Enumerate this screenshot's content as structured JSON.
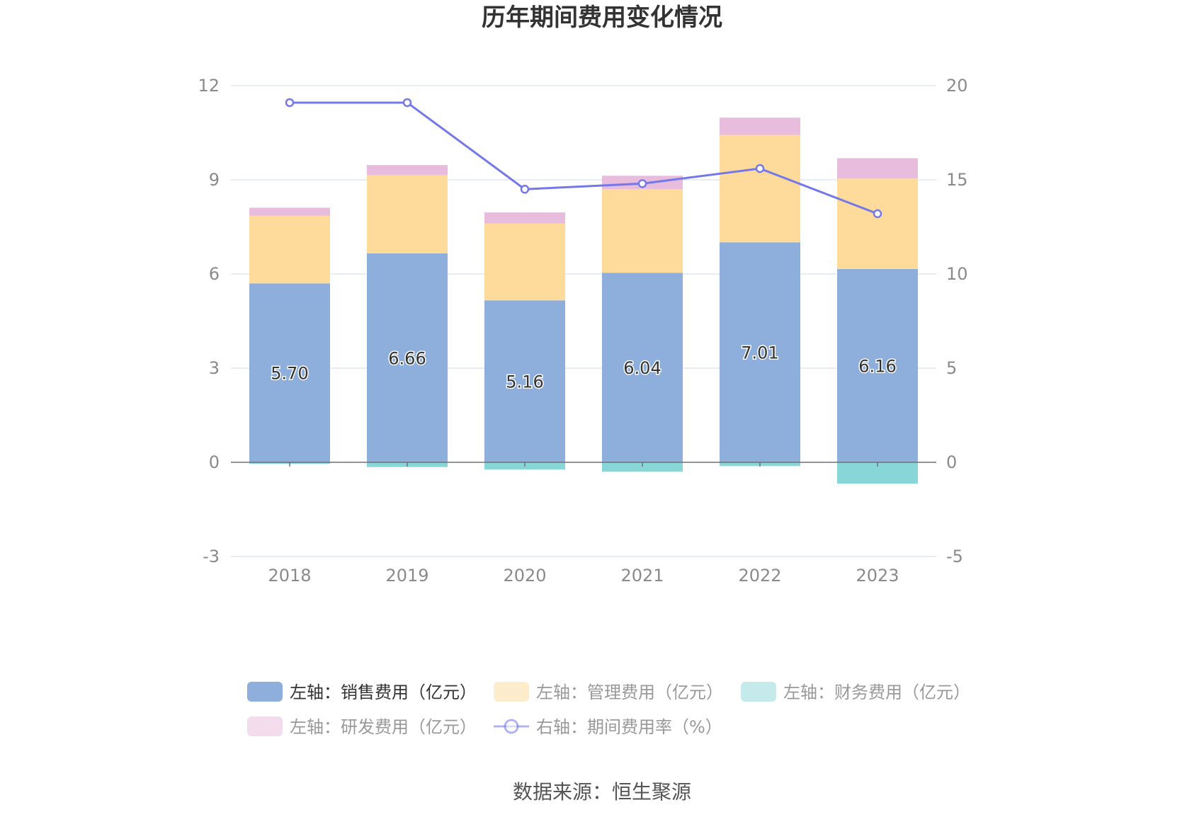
{
  "chart_data": {
    "type": "bar",
    "title": "历年期间费用变化情况",
    "categories": [
      "2018",
      "2019",
      "2020",
      "2021",
      "2022",
      "2023"
    ],
    "left_axis": {
      "ticks": [
        "-3",
        "0",
        "3",
        "6",
        "9",
        "12"
      ],
      "range": [
        -3,
        12
      ]
    },
    "right_axis": {
      "ticks": [
        "-5",
        "0",
        "5",
        "10",
        "15",
        "20"
      ],
      "range": [
        -5,
        20
      ]
    },
    "series": [
      {
        "name": "左轴：销售费用（亿元）",
        "type": "bar",
        "axis": "left",
        "color": "#8eaedb",
        "values": [
          5.7,
          6.66,
          5.16,
          6.04,
          7.01,
          6.16
        ],
        "labels": [
          "5.70",
          "6.66",
          "5.16",
          "6.04",
          "7.01",
          "6.16"
        ]
      },
      {
        "name": "左轴：管理费用（亿元）",
        "type": "bar",
        "axis": "left",
        "color": "#fedb9b",
        "values": [
          2.16,
          2.49,
          2.45,
          2.66,
          3.42,
          2.88
        ]
      },
      {
        "name": "左轴：财务费用（亿元）",
        "type": "bar",
        "axis": "left",
        "color": "#89d6d8",
        "values": [
          -0.05,
          -0.15,
          -0.23,
          -0.3,
          -0.12,
          -0.68
        ]
      },
      {
        "name": "左轴：研发费用（亿元）",
        "type": "bar",
        "axis": "left",
        "color": "#e7bcdc",
        "values": [
          0.25,
          0.32,
          0.35,
          0.43,
          0.55,
          0.65
        ]
      },
      {
        "name": "右轴：期间费用率（%）",
        "type": "line",
        "axis": "right",
        "color": "#7478e8",
        "values": [
          19.1,
          19.1,
          14.5,
          14.8,
          15.6,
          13.2
        ]
      }
    ],
    "legend_position": "bottom",
    "grid": true
  },
  "source": "数据来源：恒生聚源"
}
